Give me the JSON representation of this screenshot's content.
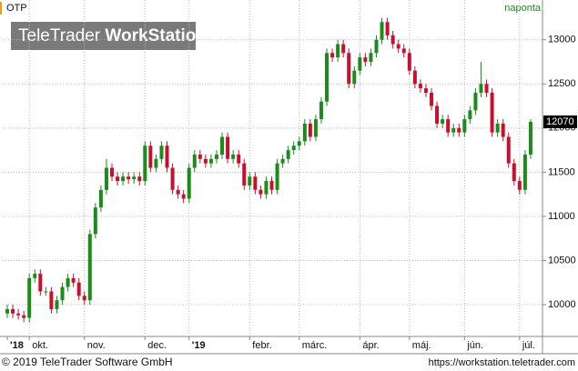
{
  "chart_data": {
    "type": "candlestick",
    "title": "OTP",
    "interval": "naponta",
    "logo": {
      "brand": "TeleTrader",
      "product": "WorkStation"
    },
    "footer": {
      "copyright": "© 2019 TeleTrader Software GmbH",
      "url": "https://workstation.teletrader.com"
    },
    "up_color": "#1a8c1a",
    "down_color": "#c8102e",
    "ylim": [
      9640,
      13450
    ],
    "yticks": [
      10000,
      10500,
      11000,
      11500,
      12000,
      12500,
      13000
    ],
    "grid": true,
    "categories": [
      "'18",
      null,
      null,
      null,
      "okt.",
      null,
      null,
      null,
      null,
      null,
      null,
      null,
      null,
      null,
      "nov.",
      null,
      null,
      null,
      null,
      null,
      null,
      null,
      null,
      null,
      null,
      "dec.",
      null,
      null,
      null,
      null,
      null,
      null,
      null,
      "'19",
      null,
      null,
      null,
      null,
      null,
      null,
      null,
      null,
      null,
      null,
      "febr.",
      null,
      null,
      null,
      null,
      null,
      null,
      null,
      null,
      "márc.",
      null,
      null,
      null,
      null,
      null,
      null,
      null,
      null,
      null,
      null,
      "ápr.",
      null,
      null,
      null,
      null,
      null,
      null,
      null,
      null,
      "máj.",
      null,
      null,
      null,
      null,
      null,
      null,
      null,
      null,
      null,
      "jún.",
      null,
      null,
      null,
      null,
      null,
      null,
      null,
      null,
      null,
      "júl.",
      null,
      null
    ],
    "series": [
      {
        "name": "OTP",
        "open": [
          9900,
          9950,
          9900,
          9880,
          9850,
          10300,
          10350,
          10150,
          10150,
          9950,
          10050,
          10200,
          10300,
          10250,
          10100,
          10050,
          10800,
          11100,
          11300,
          11550,
          11450,
          11400,
          11450,
          11420,
          11450,
          11400,
          11800,
          11550,
          11650,
          11800,
          11550,
          11300,
          11250,
          11200,
          11550,
          11700,
          11650,
          11600,
          11650,
          11700,
          11900,
          11650,
          11700,
          11600,
          11350,
          11450,
          11300,
          11250,
          11400,
          11300,
          11600,
          11650,
          11750,
          11800,
          11850,
          12050,
          11900,
          12100,
          12300,
          12850,
          12800,
          12950,
          12850,
          12500,
          12650,
          12800,
          12750,
          12850,
          13000,
          13200,
          13050,
          12950,
          12900,
          12850,
          12650,
          12500,
          12450,
          12400,
          12250,
          12050,
          12100,
          11950,
          12000,
          11950,
          12100,
          12200,
          12400,
          12500,
          12400,
          11950,
          12050,
          11900,
          11600,
          11400,
          11300,
          11700
        ],
        "high": [
          10000,
          10000,
          9950,
          9930,
          10350,
          10400,
          10400,
          10200,
          10200,
          10100,
          10250,
          10350,
          10350,
          10300,
          10150,
          10850,
          11150,
          11350,
          11650,
          11600,
          11500,
          11500,
          11500,
          11500,
          11500,
          11850,
          11850,
          11700,
          11850,
          11850,
          11600,
          11350,
          11300,
          11600,
          11750,
          11750,
          11700,
          11700,
          11750,
          11950,
          11950,
          11750,
          11750,
          11650,
          11500,
          11500,
          11350,
          11450,
          11450,
          11650,
          11700,
          11800,
          11850,
          11900,
          12100,
          12100,
          12150,
          12350,
          12900,
          12900,
          13000,
          13000,
          12900,
          12700,
          12850,
          12850,
          12900,
          13050,
          13250,
          13250,
          13100,
          13000,
          12950,
          12900,
          12700,
          12550,
          12500,
          12450,
          12300,
          12150,
          12150,
          12050,
          12050,
          12150,
          12250,
          12450,
          12750,
          12550,
          12450,
          12100,
          12100,
          11950,
          11650,
          11450,
          11750,
          12100
        ],
        "low": [
          9850,
          9850,
          9830,
          9800,
          9800,
          10250,
          10100,
          10100,
          9900,
          9900,
          10000,
          10150,
          10200,
          10050,
          10000,
          10000,
          10750,
          11050,
          11250,
          11400,
          11350,
          11350,
          11370,
          11370,
          11350,
          11350,
          11500,
          11500,
          11600,
          11500,
          11250,
          11200,
          11150,
          11150,
          11500,
          11600,
          11550,
          11550,
          11600,
          11650,
          11600,
          11600,
          11550,
          11300,
          11300,
          11250,
          11200,
          11200,
          11250,
          11250,
          11550,
          11600,
          11700,
          11750,
          11800,
          11850,
          11850,
          12050,
          12250,
          12750,
          12750,
          12800,
          12450,
          12450,
          12600,
          12700,
          12700,
          12800,
          12950,
          13000,
          12900,
          12850,
          12800,
          12600,
          12450,
          12400,
          12350,
          12200,
          12000,
          12000,
          11900,
          11900,
          11900,
          11900,
          12050,
          12150,
          12350,
          12350,
          11900,
          11900,
          11850,
          11550,
          11350,
          11250,
          11250,
          11650
        ],
        "close": [
          9950,
          9900,
          9880,
          9850,
          10300,
          10350,
          10150,
          10150,
          9950,
          10050,
          10200,
          10300,
          10250,
          10100,
          10050,
          10800,
          11100,
          11300,
          11550,
          11450,
          11400,
          11450,
          11420,
          11450,
          11400,
          11800,
          11550,
          11650,
          11800,
          11550,
          11300,
          11250,
          11200,
          11550,
          11700,
          11650,
          11600,
          11650,
          11700,
          11900,
          11650,
          11700,
          11600,
          11350,
          11450,
          11300,
          11250,
          11400,
          11300,
          11600,
          11650,
          11750,
          11800,
          11850,
          12050,
          11900,
          12100,
          12300,
          12850,
          12800,
          12950,
          12850,
          12500,
          12650,
          12800,
          12750,
          12850,
          13000,
          13200,
          13050,
          12950,
          12900,
          12850,
          12650,
          12500,
          12450,
          12400,
          12250,
          12050,
          12100,
          11950,
          12000,
          11950,
          12100,
          12200,
          12400,
          12500,
          12400,
          11950,
          12050,
          11900,
          11600,
          11400,
          11300,
          11700,
          12070
        ]
      }
    ]
  }
}
